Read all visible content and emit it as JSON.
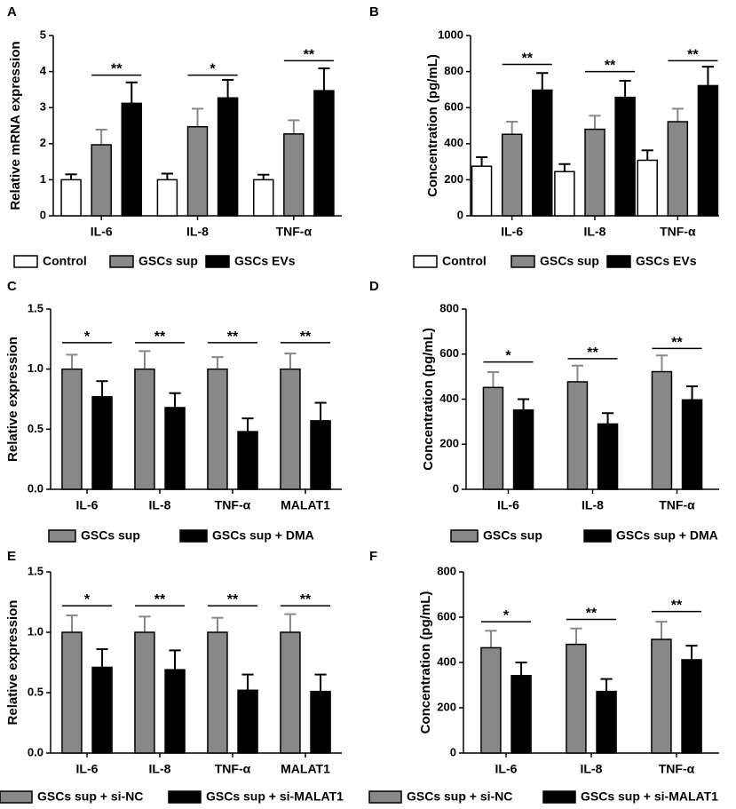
{
  "colors": {
    "control": "#ffffff",
    "sup": "#888888",
    "evs": "#000000",
    "axis": "#000000"
  },
  "chart_data": [
    {
      "panel": "A",
      "type": "bar",
      "ylabel": "Relative mRNA expression",
      "xlabel": "",
      "ylim": [
        0,
        5
      ],
      "yticks": [
        "0",
        "1",
        "2",
        "3",
        "4",
        "5"
      ],
      "categories": [
        "IL-6",
        "IL-8",
        "TNF-α"
      ],
      "series": [
        {
          "name": "Control",
          "color": "#ffffff",
          "values": [
            1.0,
            1.0,
            1.0
          ],
          "errors": [
            0.15,
            0.17,
            0.14
          ]
        },
        {
          "name": "GSCs sup",
          "color": "#888888",
          "values": [
            1.97,
            2.47,
            2.27
          ],
          "errors": [
            0.42,
            0.5,
            0.38
          ]
        },
        {
          "name": "GSCs EVs",
          "color": "#000000",
          "values": [
            3.12,
            3.27,
            3.47
          ],
          "errors": [
            0.58,
            0.5,
            0.62
          ]
        }
      ],
      "significance": [
        {
          "group": 0,
          "from": 1,
          "to": 2,
          "label": "**",
          "y": 3.9
        },
        {
          "group": 1,
          "from": 1,
          "to": 2,
          "label": "*",
          "y": 3.9
        },
        {
          "group": 2,
          "from": 1,
          "to": 2,
          "label": "**",
          "y": 4.3
        }
      ]
    },
    {
      "panel": "B",
      "type": "bar",
      "ylabel": "Concentration (pg/mL)",
      "xlabel": "",
      "ylim": [
        0,
        1000
      ],
      "yticks": [
        "0",
        "200",
        "400",
        "600",
        "800",
        "1000"
      ],
      "categories": [
        "IL-6",
        "IL-8",
        "TNF-α"
      ],
      "series": [
        {
          "name": "Control",
          "color": "#ffffff",
          "values": [
            275,
            245,
            308
          ],
          "errors": [
            50,
            42,
            55
          ]
        },
        {
          "name": "GSCs sup",
          "color": "#888888",
          "values": [
            452,
            480,
            522
          ],
          "errors": [
            70,
            75,
            72
          ]
        },
        {
          "name": "GSCs EVs",
          "color": "#000000",
          "values": [
            697,
            657,
            722
          ],
          "errors": [
            95,
            92,
            105
          ]
        }
      ],
      "significance": [
        {
          "group": 0,
          "from": 1,
          "to": 2,
          "label": "**",
          "y": 840
        },
        {
          "group": 1,
          "from": 1,
          "to": 2,
          "label": "**",
          "y": 800
        },
        {
          "group": 2,
          "from": 1,
          "to": 2,
          "label": "**",
          "y": 860
        }
      ]
    },
    {
      "panel": "C",
      "type": "bar",
      "ylabel": "Relative expression",
      "xlabel": "",
      "ylim": [
        0,
        1.5
      ],
      "yticks": [
        "0.0",
        "0.5",
        "1.0",
        "1.5"
      ],
      "categories": [
        "IL-6",
        "IL-8",
        "TNF-α",
        "MALAT1"
      ],
      "series": [
        {
          "name": "GSCs sup",
          "color": "#888888",
          "values": [
            1.0,
            1.0,
            1.0,
            1.0
          ],
          "errors": [
            0.12,
            0.15,
            0.1,
            0.13
          ]
        },
        {
          "name": "GSCs sup + DMA",
          "color": "#000000",
          "values": [
            0.77,
            0.68,
            0.48,
            0.57
          ],
          "errors": [
            0.13,
            0.12,
            0.11,
            0.15
          ]
        }
      ],
      "significance": [
        {
          "group": 0,
          "from": 0,
          "to": 1,
          "label": "*",
          "y": 1.22
        },
        {
          "group": 1,
          "from": 0,
          "to": 1,
          "label": "**",
          "y": 1.22
        },
        {
          "group": 2,
          "from": 0,
          "to": 1,
          "label": "**",
          "y": 1.22
        },
        {
          "group": 3,
          "from": 0,
          "to": 1,
          "label": "**",
          "y": 1.22
        }
      ]
    },
    {
      "panel": "D",
      "type": "bar",
      "ylabel": "Concentration (pg/mL)",
      "xlabel": "",
      "ylim": [
        0,
        800
      ],
      "yticks": [
        "0",
        "200",
        "400",
        "600",
        "800"
      ],
      "categories": [
        "IL-6",
        "IL-8",
        "TNF-α"
      ],
      "series": [
        {
          "name": "GSCs sup",
          "color": "#888888",
          "values": [
            452,
            477,
            522
          ],
          "errors": [
            68,
            72,
            72
          ]
        },
        {
          "name": "GSCs sup + DMA",
          "color": "#000000",
          "values": [
            352,
            290,
            397
          ],
          "errors": [
            48,
            48,
            60
          ]
        }
      ],
      "significance": [
        {
          "group": 0,
          "from": 0,
          "to": 1,
          "label": "*",
          "y": 565
        },
        {
          "group": 1,
          "from": 0,
          "to": 1,
          "label": "**",
          "y": 580
        },
        {
          "group": 2,
          "from": 0,
          "to": 1,
          "label": "**",
          "y": 625
        }
      ]
    },
    {
      "panel": "E",
      "type": "bar",
      "ylabel": "Relative expression",
      "xlabel": "",
      "ylim": [
        0,
        1.5
      ],
      "yticks": [
        "0.0",
        "0.5",
        "1.0",
        "1.5"
      ],
      "categories": [
        "IL-6",
        "IL-8",
        "TNF-α",
        "MALAT1"
      ],
      "series": [
        {
          "name": "GSCs sup + si-NC",
          "color": "#888888",
          "values": [
            1.0,
            1.0,
            1.0,
            1.0
          ],
          "errors": [
            0.14,
            0.13,
            0.12,
            0.15
          ]
        },
        {
          "name": "GSCs sup + si-MALAT1",
          "color": "#000000",
          "values": [
            0.71,
            0.69,
            0.52,
            0.51
          ],
          "errors": [
            0.15,
            0.16,
            0.13,
            0.14
          ]
        }
      ],
      "significance": [
        {
          "group": 0,
          "from": 0,
          "to": 1,
          "label": "*",
          "y": 1.22
        },
        {
          "group": 1,
          "from": 0,
          "to": 1,
          "label": "**",
          "y": 1.22
        },
        {
          "group": 2,
          "from": 0,
          "to": 1,
          "label": "**",
          "y": 1.22
        },
        {
          "group": 3,
          "from": 0,
          "to": 1,
          "label": "**",
          "y": 1.22
        }
      ]
    },
    {
      "panel": "F",
      "type": "bar",
      "ylabel": "Concentration (pg/mL)",
      "xlabel": "",
      "ylim": [
        0,
        800
      ],
      "yticks": [
        "0",
        "200",
        "400",
        "600",
        "800"
      ],
      "categories": [
        "IL-6",
        "IL-8",
        "TNF-α"
      ],
      "series": [
        {
          "name": "GSCs sup + si-NC",
          "color": "#888888",
          "values": [
            465,
            480,
            502
          ],
          "errors": [
            75,
            70,
            78
          ]
        },
        {
          "name": "GSCs sup + si-MALAT1",
          "color": "#000000",
          "values": [
            342,
            272,
            412
          ],
          "errors": [
            58,
            55,
            62
          ]
        }
      ],
      "significance": [
        {
          "group": 0,
          "from": 0,
          "to": 1,
          "label": "*",
          "y": 580
        },
        {
          "group": 1,
          "from": 0,
          "to": 1,
          "label": "**",
          "y": 590
        },
        {
          "group": 2,
          "from": 0,
          "to": 1,
          "label": "**",
          "y": 625
        }
      ]
    }
  ]
}
